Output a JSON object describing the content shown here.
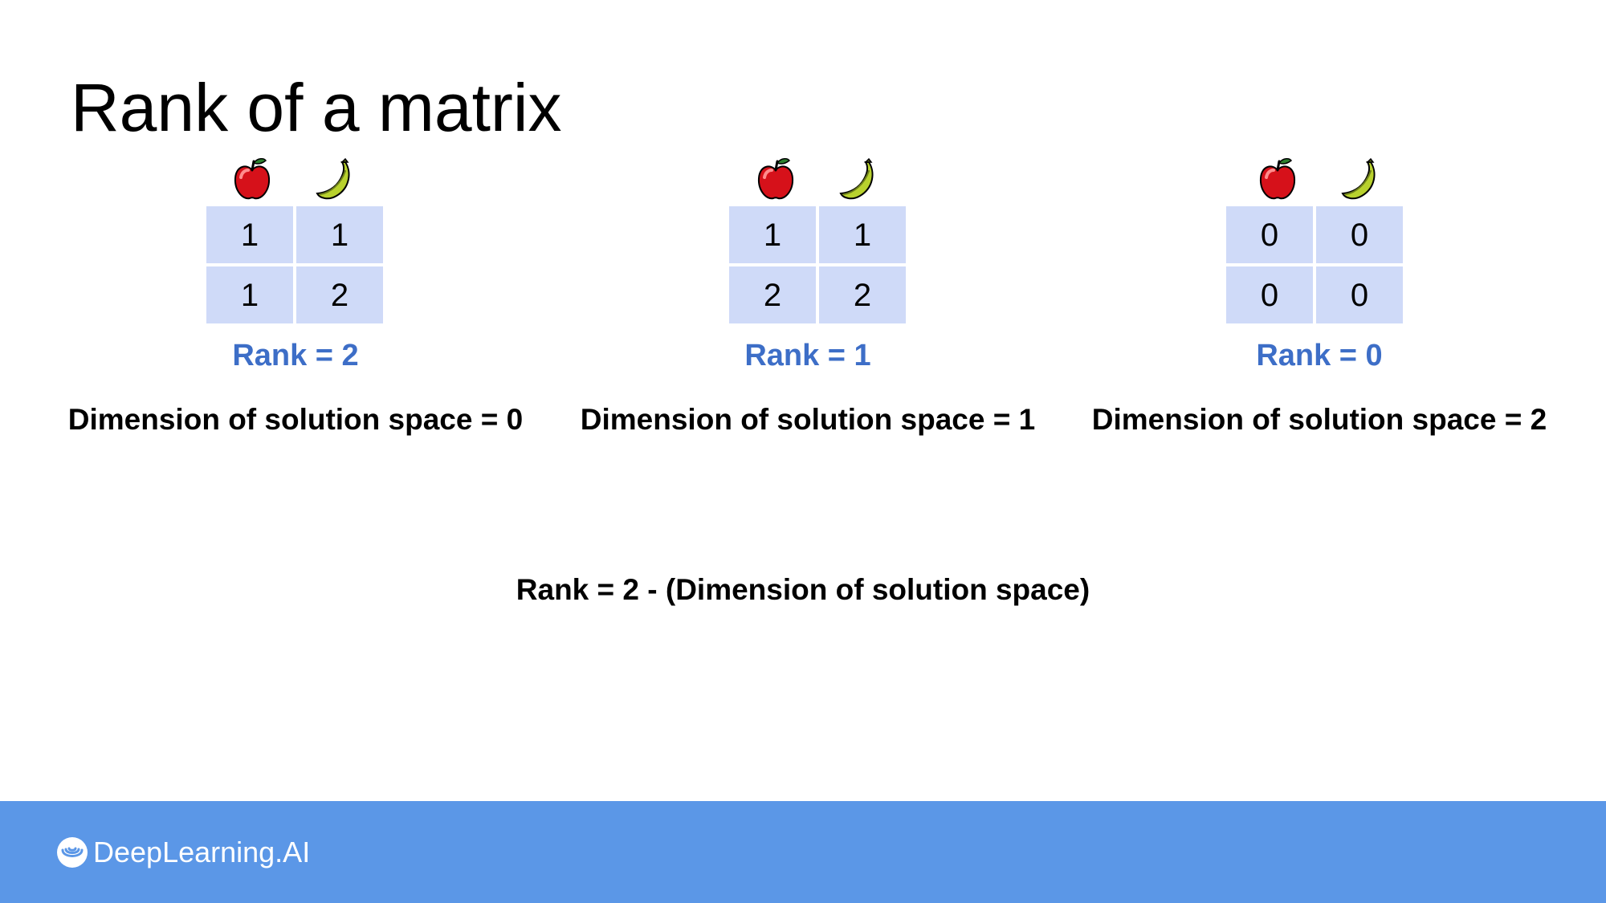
{
  "title": "Rank of a matrix",
  "colors": {
    "matrix_cell": "#cfdaf8",
    "rank_text": "#3d6ec7",
    "footer": "#5b97e7",
    "apple": "#d6111a",
    "banana": "#b8d12e"
  },
  "panels": [
    {
      "icons": [
        "apple-icon",
        "banana-icon"
      ],
      "matrix": [
        [
          "1",
          "1"
        ],
        [
          "1",
          "2"
        ]
      ],
      "rank": "Rank = 2",
      "dimension": "Dimension of solution space = 0"
    },
    {
      "icons": [
        "apple-icon",
        "banana-icon"
      ],
      "matrix": [
        [
          "1",
          "1"
        ],
        [
          "2",
          "2"
        ]
      ],
      "rank": "Rank = 1",
      "dimension": "Dimension of solution space = 1"
    },
    {
      "icons": [
        "apple-icon",
        "banana-icon"
      ],
      "matrix": [
        [
          "0",
          "0"
        ],
        [
          "0",
          "0"
        ]
      ],
      "rank": "Rank = 0",
      "dimension": "Dimension of solution space = 2"
    }
  ],
  "formula": "Rank = 2 - (Dimension of solution space)",
  "footer": {
    "brand": "DeepLearning.AI",
    "logo_icon": "deeplearning-ai-logo-icon"
  }
}
